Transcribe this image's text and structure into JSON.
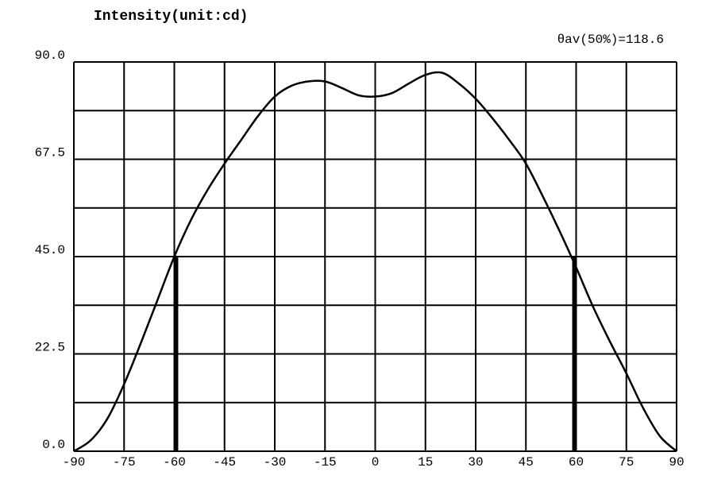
{
  "chart_data": {
    "type": "line",
    "title": "Intensity(unit:cd)",
    "annotation": "θav(50%)=118.6",
    "x": [
      -90,
      -85,
      -80,
      -75,
      -70,
      -65,
      -60,
      -55,
      -50,
      -45,
      -40,
      -35,
      -30,
      -25,
      -20,
      -15,
      -10,
      -5,
      0,
      5,
      10,
      15,
      20,
      25,
      30,
      35,
      40,
      45,
      50,
      55,
      60,
      65,
      70,
      75,
      80,
      85,
      90
    ],
    "series": [
      {
        "name": "Intensity",
        "color": "#000000",
        "values": [
          0,
          2.5,
          7.5,
          15.5,
          25,
          35,
          45,
          53.5,
          60.5,
          66.5,
          72,
          77.5,
          82,
          84.5,
          85.5,
          85.5,
          84,
          82.3,
          82,
          82.8,
          85,
          87,
          87.5,
          85,
          81.5,
          77,
          72,
          66.5,
          59,
          51,
          42.5,
          33.5,
          25.5,
          18,
          10,
          3.5,
          0
        ]
      }
    ],
    "xlim": [
      -90,
      90
    ],
    "xticks": [
      -90,
      -75,
      -60,
      -45,
      -30,
      -15,
      0,
      15,
      30,
      45,
      60,
      75,
      90
    ],
    "ylim": [
      0,
      90
    ],
    "yticks": [
      {
        "value": 0,
        "label": "0.0"
      },
      {
        "value": 22.5,
        "label": "22.5"
      },
      {
        "value": 45,
        "label": "45.0"
      },
      {
        "value": 67.5,
        "label": "67.5"
      },
      {
        "value": 90,
        "label": "90.0"
      }
    ],
    "minor_yticks": [
      11.25,
      33.75,
      56.25,
      78.75
    ],
    "half_max_lines": {
      "x": [
        -59.3,
        59.3
      ],
      "y": 45
    },
    "grid": true
  }
}
